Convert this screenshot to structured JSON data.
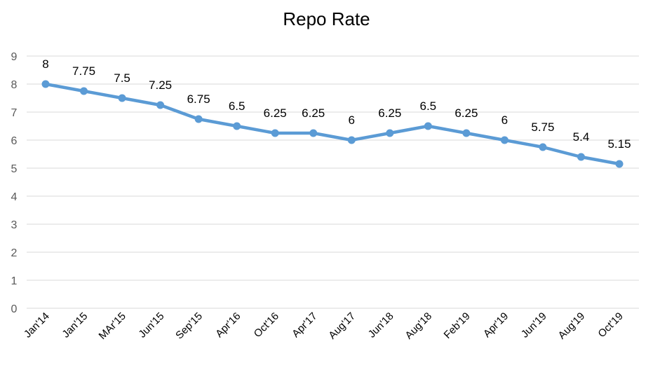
{
  "chart_data": {
    "type": "line",
    "title": "Repo Rate",
    "xlabel": "",
    "ylabel": "",
    "ylim": [
      0,
      9
    ],
    "yticks": [
      "0",
      "1",
      "2",
      "3",
      "4",
      "5",
      "6",
      "7",
      "8",
      "9"
    ],
    "grid": true,
    "categories": [
      "Jan'14",
      "Jan'15",
      "MAr'15",
      "Jun'15",
      "Sep'15",
      "Apr'16",
      "Oct'16",
      "Apr'17",
      "Aug'17",
      "Jun'18",
      "Aug'18",
      "Feb'19",
      "Apr'19",
      "Jun'19",
      "Aug'19",
      "Oct'19"
    ],
    "series": [
      {
        "values": [
          8,
          7.75,
          7.5,
          7.25,
          6.75,
          6.5,
          6.25,
          6.25,
          6,
          6.25,
          6.5,
          6.25,
          6,
          5.75,
          5.4,
          5.15
        ],
        "labels": [
          "8",
          "7.75",
          "7.5",
          "7.25",
          "6.75",
          "6.5",
          "6.25",
          "6.25",
          "6",
          "6.25",
          "6.5",
          "6.25",
          "6",
          "5.75",
          "5.4",
          "5.15"
        ],
        "color": "#5B9BD5"
      }
    ],
    "gridColor": "#D9D9D9"
  }
}
